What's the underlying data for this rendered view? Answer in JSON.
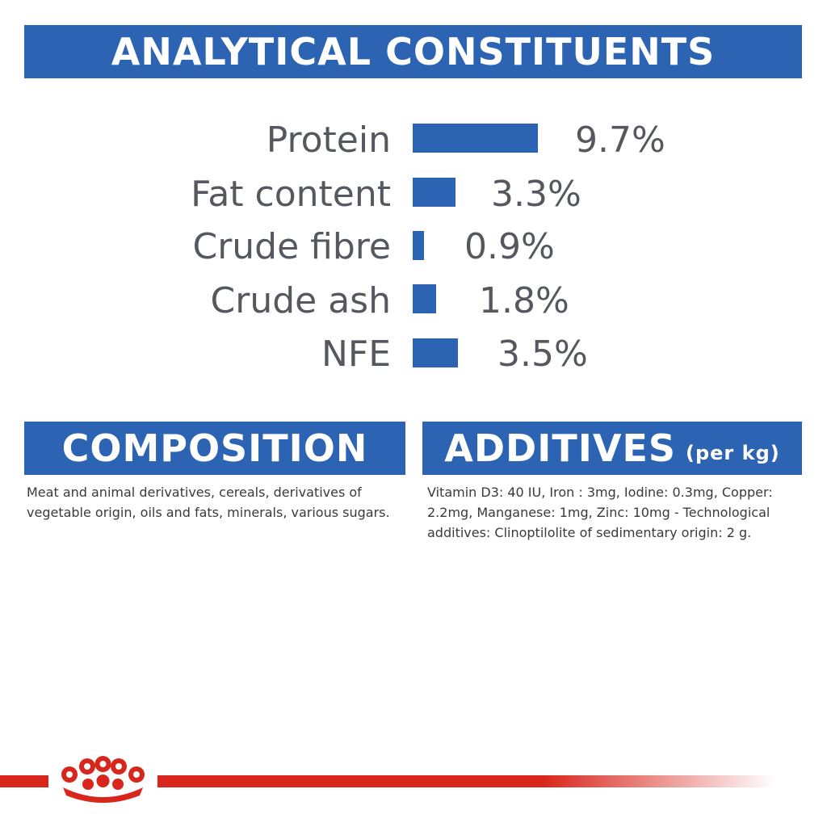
{
  "analytical": {
    "title": "ANALYTICAL CONSTITUENTS",
    "rows": [
      {
        "label": "Protein",
        "value": "9.7%",
        "percent": 9.7
      },
      {
        "label": "Fat content",
        "value": "3.3%",
        "percent": 3.3
      },
      {
        "label": "Crude fibre",
        "value": "0.9%",
        "percent": 0.9
      },
      {
        "label": "Crude ash",
        "value": "1.8%",
        "percent": 1.8
      },
      {
        "label": "NFE",
        "value": "3.5%",
        "percent": 3.5
      }
    ]
  },
  "composition": {
    "title": "COMPOSITION",
    "text": "Meat and animal derivatives, cereals, derivatives of vegetable origin, oils and fats, minerals, various sugars."
  },
  "additives": {
    "title": "ADDITIVES",
    "title_suffix": "(per kg)",
    "text": "Vitamin D3: 40 IU, Iron : 3mg, Iodine: 0.3mg, Copper: 2.2mg, Manganese: 1mg, Zinc: 10mg - Technological additives: Clinoptilolite of sedimentary origin: 2 g."
  },
  "colors": {
    "brand_blue": "#2d63b3",
    "brand_red": "#d9261c",
    "text_grey": "#55585e"
  },
  "logo": {
    "icon": "royal-canin-crown-icon"
  }
}
